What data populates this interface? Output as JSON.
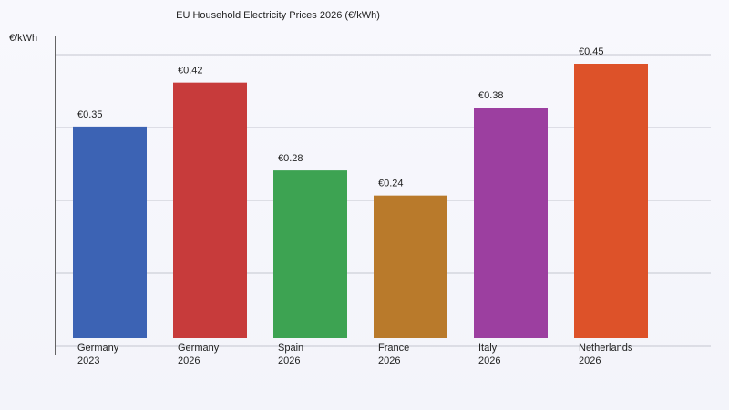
{
  "chart_data": {
    "type": "bar",
    "title": "EU Household Electricity Prices 2026 (€/kWh)",
    "ylabel": "€/kWh",
    "xlabel": "",
    "categories": [
      [
        "Germany",
        "2023"
      ],
      [
        "Germany",
        "2026"
      ],
      [
        "Spain",
        "2026"
      ],
      [
        "France",
        "2026"
      ],
      [
        "Italy",
        "2026"
      ],
      [
        "Netherlands",
        "2026"
      ]
    ],
    "values": [
      0.35,
      0.42,
      0.28,
      0.24,
      0.38,
      0.45
    ],
    "data_labels": [
      "€0.35",
      "€0.42",
      "€0.28",
      "€0.24",
      "€0.38",
      "€0.45"
    ],
    "colors": [
      "#3c63b4",
      "#c73b3b",
      "#3da352",
      "#b97a2b",
      "#9c3fa0",
      "#dd5229"
    ],
    "ylim": [
      0,
      0.5
    ],
    "grid": true,
    "legend": "none"
  }
}
